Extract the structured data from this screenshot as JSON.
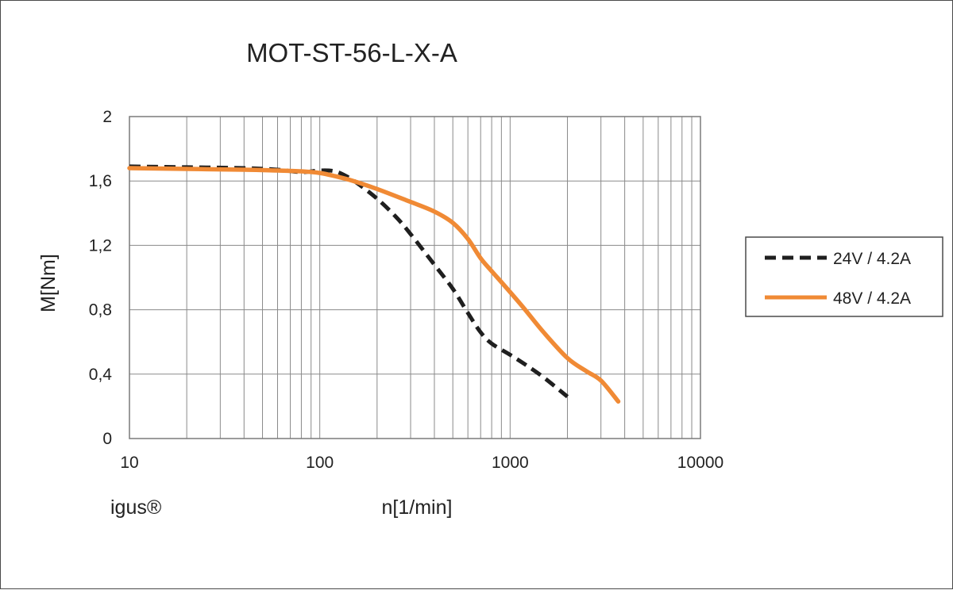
{
  "chart_data": {
    "type": "line",
    "title": "MOT-ST-56-L-X-A",
    "xlabel": "n[1/min]",
    "ylabel": "M[Nm]",
    "xscale": "log",
    "xlim": [
      10,
      10000
    ],
    "ylim": [
      0,
      2
    ],
    "grid": true,
    "legend_position": "right",
    "x_tick_labels": [
      "10",
      "100",
      "1000",
      "10000"
    ],
    "y_tick_labels": [
      "0",
      "0,4",
      "0,8",
      "1,2",
      "1,6",
      "2"
    ],
    "series": [
      {
        "name": "24V / 4.2A",
        "style": "dashed",
        "color": "#1f1f1f",
        "x": [
          10,
          20,
          40,
          60,
          80,
          100,
          120,
          140,
          160,
          200,
          250,
          300,
          400,
          500,
          600,
          700,
          800,
          1000,
          1200,
          1500,
          2000
        ],
        "y": [
          1.69,
          1.685,
          1.68,
          1.67,
          1.655,
          1.665,
          1.66,
          1.625,
          1.58,
          1.49,
          1.38,
          1.27,
          1.08,
          0.93,
          0.78,
          0.66,
          0.59,
          0.52,
          0.46,
          0.38,
          0.26
        ]
      },
      {
        "name": "48V / 4.2A",
        "style": "solid",
        "color": "#f08a35",
        "x": [
          10,
          20,
          40,
          60,
          80,
          100,
          120,
          150,
          200,
          300,
          400,
          500,
          600,
          700,
          800,
          1000,
          1200,
          1500,
          2000,
          2500,
          3000,
          3700
        ],
        "y": [
          1.68,
          1.675,
          1.67,
          1.665,
          1.66,
          1.65,
          1.63,
          1.6,
          1.55,
          1.47,
          1.41,
          1.34,
          1.24,
          1.12,
          1.04,
          0.91,
          0.8,
          0.66,
          0.5,
          0.42,
          0.36,
          0.23
        ]
      }
    ]
  },
  "brand": "igus®"
}
